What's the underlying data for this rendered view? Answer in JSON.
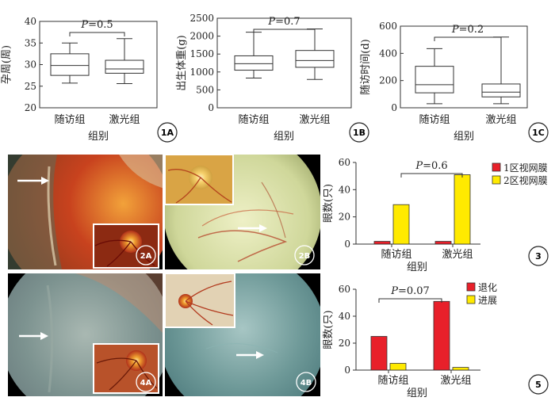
{
  "panels": {
    "p1A": "1A",
    "p1B": "1B",
    "p1C": "1C",
    "p2A": "2A",
    "p2B": "2B",
    "p4A": "4A",
    "p4B": "4B",
    "p3": "3",
    "p5": "5"
  },
  "chart_data": [
    {
      "id": "1A",
      "type": "box",
      "ylabel": "孕周(周)",
      "xlabel": "组别",
      "categories": [
        "随访组",
        "激光组"
      ],
      "ylim": [
        20,
        40
      ],
      "yticks": [
        20,
        25,
        30,
        35,
        40
      ],
      "boxes": [
        {
          "min": 25.7,
          "q1": 27.5,
          "median": 29.8,
          "q3": 32.5,
          "max": 35
        },
        {
          "min": 25.6,
          "q1": 28,
          "median": 29,
          "q3": 31,
          "max": 36
        }
      ],
      "annotation": {
        "p_label": "P",
        "p_text": "=0.5"
      }
    },
    {
      "id": "1B",
      "type": "box",
      "ylabel": "出生体重(g)",
      "xlabel": "组别",
      "categories": [
        "随访组",
        "激光组"
      ],
      "ylim": [
        0,
        2500
      ],
      "yticks": [
        0,
        500,
        1000,
        1500,
        2000,
        2500
      ],
      "boxes": [
        {
          "min": 830,
          "q1": 1050,
          "median": 1230,
          "q3": 1450,
          "max": 2110
        },
        {
          "min": 790,
          "q1": 1130,
          "median": 1320,
          "q3": 1600,
          "max": 2200
        }
      ],
      "annotation": {
        "p_label": "P",
        "p_text": "=0.7"
      }
    },
    {
      "id": "1C",
      "type": "box",
      "ylabel": "随访时间(d)",
      "xlabel": "组别",
      "categories": [
        "随访组",
        "激光组"
      ],
      "ylim": [
        0,
        600
      ],
      "yticks": [
        0,
        200,
        400,
        600
      ],
      "boxes": [
        {
          "min": 30,
          "q1": 110,
          "median": 170,
          "q3": 305,
          "max": 435
        },
        {
          "min": 30,
          "q1": 80,
          "median": 115,
          "q3": 175,
          "max": 520
        }
      ],
      "annotation": {
        "p_label": "P",
        "p_text": "=0.2"
      }
    },
    {
      "id": "3",
      "type": "bar",
      "ylabel": "眼数(只)",
      "xlabel": "组别",
      "categories": [
        "随访组",
        "激光组"
      ],
      "ylim": [
        0,
        60
      ],
      "yticks": [
        0,
        20,
        40,
        60
      ],
      "series": [
        {
          "name": "1区视网膜",
          "color": "#e8202a",
          "values": [
            2,
            2
          ]
        },
        {
          "name": "2区视网膜",
          "color": "#ffea00",
          "values": [
            29,
            51
          ]
        }
      ],
      "annotation": {
        "p_label": "P",
        "p_text": "=0.6"
      }
    },
    {
      "id": "5",
      "type": "bar",
      "ylabel": "眼数(只)",
      "xlabel": "组别",
      "categories": [
        "随访组",
        "激光组"
      ],
      "ylim": [
        0,
        60
      ],
      "yticks": [
        0,
        20,
        40,
        60
      ],
      "series": [
        {
          "name": "退化",
          "color": "#e8202a",
          "values": [
            25,
            51
          ]
        },
        {
          "name": "进展",
          "color": "#ffea00",
          "values": [
            5,
            2
          ]
        }
      ],
      "annotation": {
        "p_label": "P",
        "p_text": "=0.07"
      }
    }
  ]
}
